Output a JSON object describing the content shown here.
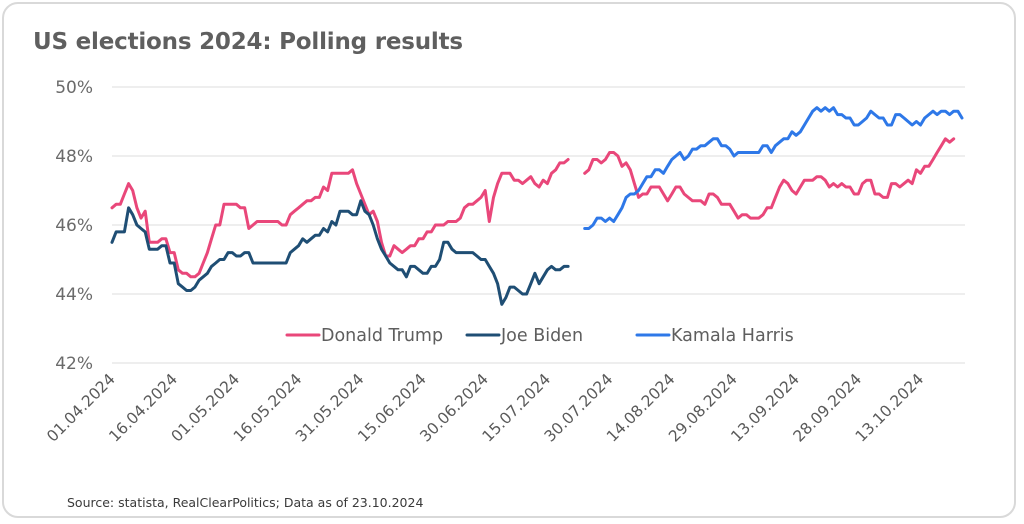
{
  "title": "US elections 2024: Polling results",
  "source": "Source: statista, RealClearPolitics; Data as of 23.10.2024",
  "chart_data": {
    "type": "line",
    "title": "US elections 2024: Polling results",
    "xlabel": "",
    "ylabel": "",
    "ylim": [
      42,
      50
    ],
    "yticks": [
      42,
      44,
      46,
      48,
      50
    ],
    "ytick_labels": [
      "42%",
      "44%",
      "46%",
      "48%",
      "50%"
    ],
    "x_start": "01.04.2024",
    "x_end": "23.10.2024",
    "xtick_labels": [
      "01.04.2024",
      "16.04.2024",
      "01.05.2024",
      "16.05.2024",
      "31.05.2024",
      "15.06.2024",
      "30.06.2024",
      "15.07.2024",
      "30.07.2024",
      "14.08.2024",
      "29.08.2024",
      "13.09.2024",
      "28.09.2024",
      "13.10.2024"
    ],
    "xtick_days": [
      0,
      15,
      30,
      45,
      60,
      75,
      90,
      105,
      120,
      135,
      150,
      165,
      180,
      195
    ],
    "x_total_days": 205,
    "grid": true,
    "legend_position": "center",
    "series": [
      {
        "name": "Donald Trump",
        "color": "#e9477a",
        "segments": [
          {
            "days": [
              0,
              1,
              2,
              3,
              4,
              5,
              6,
              7,
              8,
              9,
              10,
              11,
              12,
              13,
              14,
              15,
              16,
              17,
              18,
              19,
              20,
              21,
              22,
              23,
              24,
              25,
              26,
              27,
              28,
              29,
              30,
              31,
              32,
              33,
              34,
              35,
              36,
              37,
              38,
              39,
              40,
              41,
              42,
              43,
              44,
              45,
              46,
              47,
              48,
              49,
              50,
              51,
              52,
              53,
              54,
              55,
              56,
              57,
              58,
              59,
              60,
              61,
              62,
              63,
              64,
              65,
              66,
              67,
              68,
              69,
              70,
              71,
              72,
              73,
              74,
              75,
              76,
              77,
              78,
              79,
              80,
              81,
              82,
              83,
              84,
              85,
              86,
              87,
              88,
              89,
              90,
              91,
              92,
              93,
              94,
              95,
              96,
              97,
              98,
              99,
              100,
              101,
              102,
              103,
              104,
              105,
              106,
              107,
              108,
              109,
              110
            ],
            "values": [
              46.5,
              46.6,
              46.6,
              46.9,
              47.2,
              47.0,
              46.5,
              46.2,
              46.4,
              45.5,
              45.5,
              45.5,
              45.6,
              45.6,
              45.2,
              45.2,
              44.7,
              44.6,
              44.6,
              44.5,
              44.5,
              44.6,
              44.9,
              45.2,
              45.6,
              46.0,
              46.0,
              46.6,
              46.6,
              46.6,
              46.6,
              46.5,
              46.5,
              45.9,
              46.0,
              46.1,
              46.1,
              46.1,
              46.1,
              46.1,
              46.1,
              46.0,
              46.0,
              46.3,
              46.4,
              46.5,
              46.6,
              46.7,
              46.7,
              46.8,
              46.8,
              47.1,
              47.0,
              47.5,
              47.5,
              47.5,
              47.5,
              47.5,
              47.6,
              47.2,
              46.9,
              46.6,
              46.3,
              46.4,
              46.1,
              45.5,
              45.1,
              45.1,
              45.4,
              45.3,
              45.2,
              45.3,
              45.4,
              45.4,
              45.6,
              45.6,
              45.8,
              45.8,
              46.0,
              46.0,
              46.0,
              46.1,
              46.1,
              46.1,
              46.2,
              46.5,
              46.6,
              46.6,
              46.7,
              46.8,
              47.0,
              46.1,
              46.8,
              47.2,
              47.5,
              47.5,
              47.5,
              47.3,
              47.3,
              47.2,
              47.3,
              47.4,
              47.2,
              47.1,
              47.3,
              47.2,
              47.5,
              47.6,
              47.8,
              47.8,
              47.9
            ]
          },
          {
            "days": [
              114,
              115,
              116,
              117,
              118,
              119,
              120,
              121,
              122,
              123,
              124,
              125,
              126,
              127,
              128,
              129,
              130,
              131,
              132,
              133,
              134,
              135,
              136,
              137,
              138,
              139,
              140,
              141,
              142,
              143,
              144,
              145,
              146,
              147,
              148,
              149,
              150,
              151,
              152,
              153,
              154,
              155,
              156,
              157,
              158,
              159,
              160,
              161,
              162,
              163,
              164,
              165,
              166,
              167,
              168,
              169,
              170,
              171,
              172,
              173,
              174,
              175,
              176,
              177,
              178,
              179,
              180,
              181,
              182,
              183,
              184,
              185,
              186,
              187,
              188,
              189,
              190,
              191,
              192,
              193,
              194,
              195,
              196,
              197,
              198,
              199,
              200,
              201,
              202,
              203,
              204,
              205
            ],
            "values": [
              47.5,
              47.6,
              47.9,
              47.9,
              47.8,
              47.9,
              48.1,
              48.1,
              48.0,
              47.7,
              47.8,
              47.6,
              47.2,
              46.8,
              46.9,
              46.9,
              47.1,
              47.1,
              47.1,
              46.9,
              46.7,
              46.9,
              47.1,
              47.1,
              46.9,
              46.8,
              46.7,
              46.7,
              46.7,
              46.6,
              46.9,
              46.9,
              46.8,
              46.6,
              46.6,
              46.6,
              46.4,
              46.2,
              46.3,
              46.3,
              46.2,
              46.2,
              46.2,
              46.3,
              46.5,
              46.5,
              46.8,
              47.1,
              47.3,
              47.2,
              47.0,
              46.9,
              47.1,
              47.3,
              47.3,
              47.3,
              47.4,
              47.4,
              47.3,
              47.1,
              47.2,
              47.1,
              47.2,
              47.1,
              47.1,
              46.9,
              46.9,
              47.2,
              47.3,
              47.3,
              46.9,
              46.9,
              46.8,
              46.8,
              47.2,
              47.2,
              47.1,
              47.2,
              47.3,
              47.2,
              47.6,
              47.5,
              47.7,
              47.7,
              47.9,
              48.1,
              48.3,
              48.5,
              48.4,
              48.5
            ]
          }
        ]
      },
      {
        "name": "Joe Biden",
        "color": "#1f4e74",
        "segments": [
          {
            "days": [
              0,
              1,
              2,
              3,
              4,
              5,
              6,
              7,
              8,
              9,
              10,
              11,
              12,
              13,
              14,
              15,
              16,
              17,
              18,
              19,
              20,
              21,
              22,
              23,
              24,
              25,
              26,
              27,
              28,
              29,
              30,
              31,
              32,
              33,
              34,
              35,
              36,
              37,
              38,
              39,
              40,
              41,
              42,
              43,
              44,
              45,
              46,
              47,
              48,
              49,
              50,
              51,
              52,
              53,
              54,
              55,
              56,
              57,
              58,
              59,
              60,
              61,
              62,
              63,
              64,
              65,
              66,
              67,
              68,
              69,
              70,
              71,
              72,
              73,
              74,
              75,
              76,
              77,
              78,
              79,
              80,
              81,
              82,
              83,
              84,
              85,
              86,
              87,
              88,
              89,
              90,
              91,
              92,
              93,
              94,
              95,
              96,
              97,
              98,
              99,
              100,
              101,
              102,
              103,
              104,
              105,
              106,
              107,
              108,
              109,
              110
            ],
            "values": [
              45.5,
              45.8,
              45.8,
              45.8,
              46.5,
              46.3,
              46.0,
              45.9,
              45.8,
              45.3,
              45.3,
              45.3,
              45.4,
              45.4,
              44.9,
              44.9,
              44.3,
              44.2,
              44.1,
              44.1,
              44.2,
              44.4,
              44.5,
              44.6,
              44.8,
              44.9,
              45.0,
              45.0,
              45.2,
              45.2,
              45.1,
              45.1,
              45.2,
              45.2,
              44.9,
              44.9,
              44.9,
              44.9,
              44.9,
              44.9,
              44.9,
              44.9,
              44.9,
              45.2,
              45.3,
              45.4,
              45.6,
              45.5,
              45.6,
              45.7,
              45.7,
              45.9,
              45.8,
              46.1,
              46.0,
              46.4,
              46.4,
              46.4,
              46.3,
              46.3,
              46.7,
              46.4,
              46.3,
              46.0,
              45.6,
              45.3,
              45.1,
              44.9,
              44.8,
              44.7,
              44.7,
              44.5,
              44.8,
              44.8,
              44.7,
              44.6,
              44.6,
              44.8,
              44.8,
              45.0,
              45.5,
              45.5,
              45.3,
              45.2,
              45.2,
              45.2,
              45.2,
              45.2,
              45.1,
              45.0,
              45.0,
              44.8,
              44.6,
              44.3,
              43.7,
              43.9,
              44.2,
              44.2,
              44.1,
              44.0,
              44.0,
              44.3,
              44.6,
              44.3,
              44.5,
              44.7,
              44.8,
              44.7,
              44.7,
              44.8,
              44.8
            ]
          }
        ]
      },
      {
        "name": "Kamala Harris",
        "color": "#2e78e8",
        "segments": [
          {
            "days": [
              114,
              115,
              116,
              117,
              118,
              119,
              120,
              121,
              122,
              123,
              124,
              125,
              126,
              127,
              128,
              129,
              130,
              131,
              132,
              133,
              134,
              135,
              136,
              137,
              138,
              139,
              140,
              141,
              142,
              143,
              144,
              145,
              146,
              147,
              148,
              149,
              150,
              151,
              152,
              153,
              154,
              155,
              156,
              157,
              158,
              159,
              160,
              161,
              162,
              163,
              164,
              165,
              166,
              167,
              168,
              169,
              170,
              171,
              172,
              173,
              174,
              175,
              176,
              177,
              178,
              179,
              180,
              181,
              182,
              183,
              184,
              185,
              186,
              187,
              188,
              189,
              190,
              191,
              192,
              193,
              194,
              195,
              196,
              197,
              198,
              199,
              200,
              201,
              202,
              203,
              204,
              205
            ],
            "values": [
              45.9,
              45.9,
              46.0,
              46.2,
              46.2,
              46.1,
              46.2,
              46.1,
              46.3,
              46.5,
              46.8,
              46.9,
              46.9,
              47.0,
              47.2,
              47.4,
              47.4,
              47.6,
              47.6,
              47.5,
              47.7,
              47.9,
              48.0,
              48.1,
              47.9,
              48.0,
              48.2,
              48.2,
              48.3,
              48.3,
              48.4,
              48.5,
              48.5,
              48.3,
              48.3,
              48.2,
              48.0,
              48.1,
              48.1,
              48.1,
              48.1,
              48.1,
              48.1,
              48.3,
              48.3,
              48.1,
              48.3,
              48.4,
              48.5,
              48.5,
              48.7,
              48.6,
              48.7,
              48.9,
              49.1,
              49.3,
              49.4,
              49.3,
              49.4,
              49.3,
              49.4,
              49.2,
              49.2,
              49.1,
              49.1,
              48.9,
              48.9,
              49.0,
              49.1,
              49.3,
              49.2,
              49.1,
              49.1,
              48.9,
              48.9,
              49.2,
              49.2,
              49.1,
              49.0,
              48.9,
              49.0,
              48.9,
              49.1,
              49.2,
              49.3,
              49.2,
              49.3,
              49.3,
              49.2,
              49.3,
              49.3,
              49.1
            ]
          }
        ]
      }
    ]
  }
}
